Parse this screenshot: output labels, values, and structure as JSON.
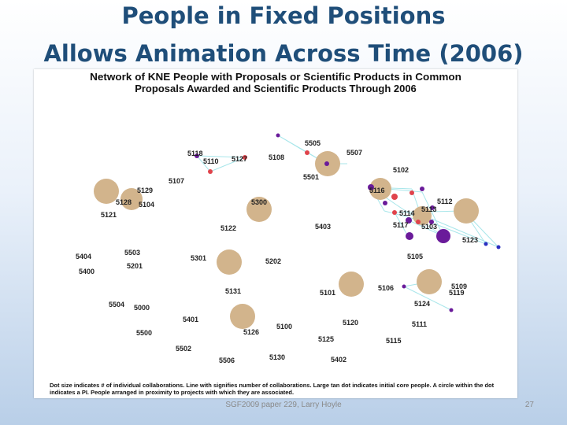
{
  "slide": {
    "title_line1": "People in Fixed Positions",
    "title_line2": "Allows Animation Across Time (2006)",
    "footer": "SGF2009 paper 229, Larry Hoyle",
    "page_number": "27"
  },
  "figure": {
    "title_line1": "Network of KNE People with Proposals or Scientific Products in Common",
    "title_line2": "Proposals Awarded and Scientific Products Through 2006",
    "caption": "Dot size indicates # of individual collaborations. Line with signifies number of collaborations. Large tan dot indicates initial core people. A circle within the dot indicates a PI. People arranged in proximity to projects with which they are associated.",
    "colors": {
      "tan": "#d2b48c",
      "red": "#e0434b",
      "purple": "#6a1b9a",
      "blue": "#2a2fc0",
      "edge": "#a8e6ea"
    }
  },
  "labels": [
    {
      "id": "5118",
      "text": "5118"
    },
    {
      "id": "5110",
      "text": "5110"
    },
    {
      "id": "5127",
      "text": "5127"
    },
    {
      "id": "5108",
      "text": "5108"
    },
    {
      "id": "5505",
      "text": "5505"
    },
    {
      "id": "5507",
      "text": "5507"
    },
    {
      "id": "5107",
      "text": "5107"
    },
    {
      "id": "5501",
      "text": "5501"
    },
    {
      "id": "5102",
      "text": "5102"
    },
    {
      "id": "5129",
      "text": "5129"
    },
    {
      "id": "5128",
      "text": "5128"
    },
    {
      "id": "5104",
      "text": "5104"
    },
    {
      "id": "5121",
      "text": "5121"
    },
    {
      "id": "5300",
      "text": "5300"
    },
    {
      "id": "5116",
      "text": "5116"
    },
    {
      "id": "5112",
      "text": "5112"
    },
    {
      "id": "5113",
      "text": "5113"
    },
    {
      "id": "5114",
      "text": "5114"
    },
    {
      "id": "5117",
      "text": "5117"
    },
    {
      "id": "5103",
      "text": "5103"
    },
    {
      "id": "5122",
      "text": "5122"
    },
    {
      "id": "5403",
      "text": "5403"
    },
    {
      "id": "5123",
      "text": "5123"
    },
    {
      "id": "5404",
      "text": "5404"
    },
    {
      "id": "5503",
      "text": "5503"
    },
    {
      "id": "5301",
      "text": "5301"
    },
    {
      "id": "5202",
      "text": "5202"
    },
    {
      "id": "5105",
      "text": "5105"
    },
    {
      "id": "5400",
      "text": "5400"
    },
    {
      "id": "5201",
      "text": "5201"
    },
    {
      "id": "5131",
      "text": "5131"
    },
    {
      "id": "5101",
      "text": "5101"
    },
    {
      "id": "5106",
      "text": "5106"
    },
    {
      "id": "5109",
      "text": "5109"
    },
    {
      "id": "5119",
      "text": "5119"
    },
    {
      "id": "5504",
      "text": "5504"
    },
    {
      "id": "5000",
      "text": "5000"
    },
    {
      "id": "5124",
      "text": "5124"
    },
    {
      "id": "5401",
      "text": "5401"
    },
    {
      "id": "5500",
      "text": "5500"
    },
    {
      "id": "5126",
      "text": "5126"
    },
    {
      "id": "5100",
      "text": "5100"
    },
    {
      "id": "5120",
      "text": "5120"
    },
    {
      "id": "5111",
      "text": "5111"
    },
    {
      "id": "5502",
      "text": "5502"
    },
    {
      "id": "5125",
      "text": "5125"
    },
    {
      "id": "5115",
      "text": "5115"
    },
    {
      "id": "5506",
      "text": "5506"
    },
    {
      "id": "5130",
      "text": "5130"
    },
    {
      "id": "5402",
      "text": "5402"
    }
  ]
}
